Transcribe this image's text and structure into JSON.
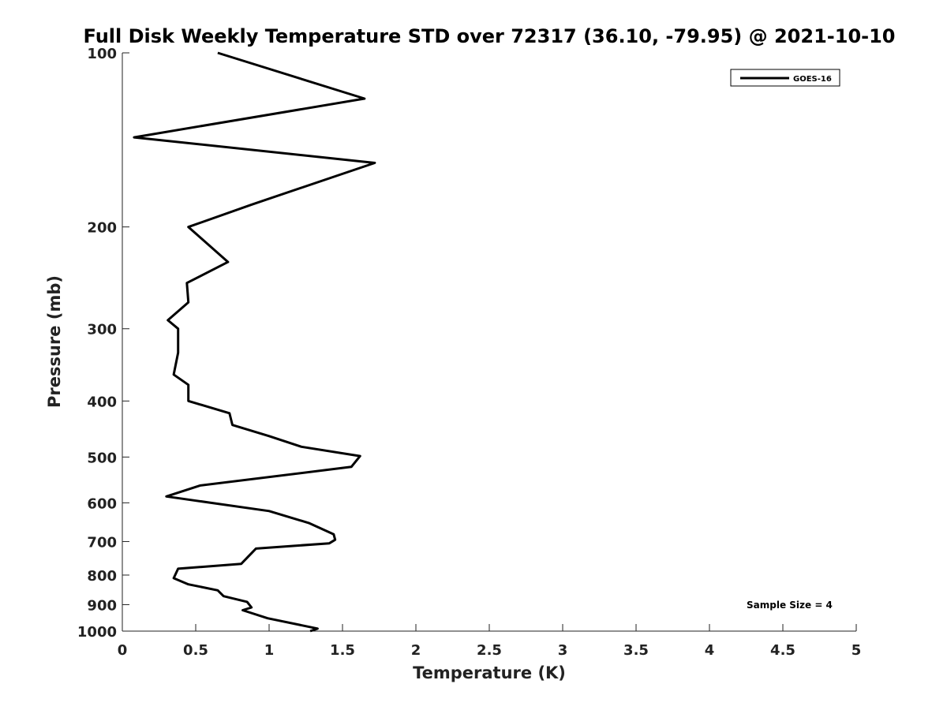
{
  "chart_data": {
    "type": "line",
    "title": "Full Disk Weekly Temperature STD over 72317 (36.10, -79.95) @ 2021-10-10",
    "xlabel": "Temperature (K)",
    "ylabel": "Pressure (mb)",
    "xlim": [
      0,
      5
    ],
    "ylim": [
      100,
      1000
    ],
    "yscale": "log",
    "yreversed": true,
    "x_ticks": [
      "0",
      "0.5",
      "1",
      "1.5",
      "2",
      "2.5",
      "3",
      "3.5",
      "4",
      "4.5",
      "5"
    ],
    "y_ticks": [
      "100",
      "200",
      "300",
      "400",
      "500",
      "600",
      "700",
      "800",
      "900",
      "1000"
    ],
    "legend_position": "top-right",
    "grid": false,
    "series": [
      {
        "name": "GOES-16",
        "color": "#000000",
        "points": [
          [
            0.65,
            100
          ],
          [
            1.65,
            120
          ],
          [
            0.08,
            140
          ],
          [
            1.72,
            155
          ],
          [
            0.88,
            183
          ],
          [
            0.45,
            200
          ],
          [
            0.72,
            230
          ],
          [
            0.44,
            250
          ],
          [
            0.45,
            270
          ],
          [
            0.31,
            290
          ],
          [
            0.38,
            300
          ],
          [
            0.38,
            330
          ],
          [
            0.35,
            360
          ],
          [
            0.45,
            375
          ],
          [
            0.45,
            400
          ],
          [
            0.73,
            420
          ],
          [
            0.75,
            440
          ],
          [
            1.0,
            460
          ],
          [
            1.22,
            480
          ],
          [
            1.62,
            498
          ],
          [
            1.56,
            520
          ],
          [
            0.53,
            560
          ],
          [
            0.3,
            585
          ],
          [
            1.0,
            620
          ],
          [
            1.27,
            650
          ],
          [
            1.44,
            680
          ],
          [
            1.45,
            695
          ],
          [
            1.41,
            705
          ],
          [
            0.91,
            720
          ],
          [
            0.81,
            765
          ],
          [
            0.38,
            780
          ],
          [
            0.35,
            810
          ],
          [
            0.45,
            830
          ],
          [
            0.65,
            850
          ],
          [
            0.69,
            870
          ],
          [
            0.85,
            890
          ],
          [
            0.88,
            910
          ],
          [
            0.82,
            920
          ],
          [
            0.99,
            950
          ],
          [
            1.33,
            990
          ],
          [
            1.28,
            1000
          ]
        ]
      }
    ],
    "annotation": "Sample Size = 4"
  }
}
